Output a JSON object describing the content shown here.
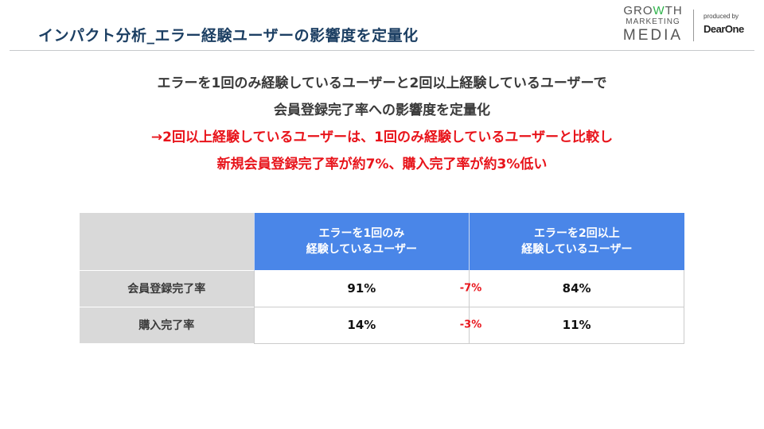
{
  "header": {
    "title": "インパクト分析_エラー経験ユーザーの影響度を定量化",
    "logo": {
      "line1_a": "GRO",
      "line1_w": "W",
      "line1_b": "TH",
      "line2": "MARKETING",
      "line3": "MEDIA",
      "produced_by": "produced by",
      "brand": "DearOne"
    }
  },
  "summary": {
    "lines": [
      "エラーを1回のみ経験しているユーザーと2回以上経験しているユーザーで",
      "会員登録完了率への影響度を定量化"
    ],
    "highlight": [
      "→2回以上経験しているユーザーは、1回のみ経験しているユーザーと比較し",
      "新規会員登録完了率が約7%、購入完了率が約3%低い"
    ]
  },
  "table": {
    "columns": [
      {
        "line1": "エラーを1回のみ",
        "line2": "経験しているユーザー"
      },
      {
        "line1": "エラーを2回以上",
        "line2": "経験しているユーザー"
      }
    ],
    "rows": [
      {
        "label": "会員登録完了率",
        "once": "91%",
        "diff": "-7%",
        "multiple": "84%"
      },
      {
        "label": "購入完了率",
        "once": "14%",
        "diff": "-3%",
        "multiple": "11%"
      }
    ]
  },
  "colors": {
    "title": "#1c3f63",
    "header_bg": "#4a86e8",
    "label_bg": "#d9d9d9",
    "highlight": "#e8141b"
  }
}
